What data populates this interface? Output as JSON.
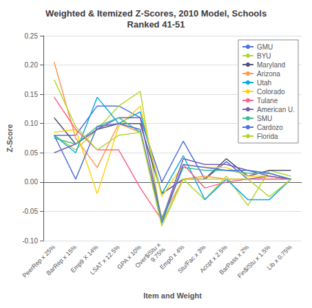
{
  "chart_data": {
    "type": "line",
    "title": "Weighted & Itemized Z-Scores, 2010 Model, Schools\nRanked 41-51",
    "xlabel": "Item and Weight",
    "ylabel": "Z-Score",
    "categories": [
      "PeerRep x 25%",
      "BarRep x 15%",
      "Emp9 X 14%",
      "LSAT x 12.5%",
      "GPA x 10%",
      "Over$/Stu x\n9.75%",
      "Emp0 x 4%",
      "Stu/Fac x 3%",
      "Accpt x 2.5%",
      "BarPass x 2%",
      "Fin$/Stu x 1.5%",
      "Lib x 0.75%"
    ],
    "series": [
      {
        "name": "GMU",
        "values": [
          0.08,
          0.08,
          0.13,
          0.13,
          0.11,
          0.0,
          0.07,
          0.005,
          0.035,
          0.005,
          0.01,
          0.005
        ]
      },
      {
        "name": "BYU",
        "values": [
          0.08,
          0.055,
          0.09,
          0.13,
          0.155,
          -0.07,
          0.005,
          -0.03,
          0.01,
          -0.04,
          0.02,
          0.01
        ]
      },
      {
        "name": "Maryland",
        "values": [
          0.11,
          0.065,
          0.09,
          0.1,
          0.1,
          -0.02,
          0.005,
          0.005,
          0.04,
          0.01,
          0.02,
          0.02
        ]
      },
      {
        "name": "Arizona",
        "values": [
          0.205,
          0.075,
          0.025,
          0.1,
          0.085,
          -0.06,
          0.005,
          0.01,
          0.005,
          0.005,
          0.005,
          0.005
        ]
      },
      {
        "name": "Utah",
        "values": [
          0.08,
          0.05,
          0.145,
          0.1,
          0.12,
          -0.02,
          0.045,
          -0.03,
          0.005,
          -0.03,
          -0.03,
          0.005
        ]
      },
      {
        "name": "Colorado",
        "values": [
          0.085,
          0.09,
          -0.02,
          0.095,
          0.13,
          -0.025,
          0.03,
          0.025,
          0.025,
          0.01,
          0.01,
          0.005
        ]
      },
      {
        "name": "Tulane",
        "values": [
          0.145,
          0.09,
          0.055,
          0.055,
          -0.01,
          -0.065,
          0.03,
          -0.01,
          0.0,
          0.005,
          0.005,
          0.005
        ]
      },
      {
        "name": "American U.",
        "values": [
          0.05,
          0.065,
          0.09,
          0.11,
          0.11,
          -0.065,
          0.04,
          0.03,
          0.03,
          0.02,
          0.01,
          0.005
        ]
      },
      {
        "name": "SMU",
        "values": [
          0.075,
          0.065,
          0.095,
          0.11,
          0.085,
          -0.065,
          0.025,
          0.02,
          0.02,
          0.015,
          0.015,
          0.005
        ]
      },
      {
        "name": "Cardozo",
        "values": [
          0.08,
          0.005,
          0.095,
          0.1,
          0.09,
          -0.07,
          0.03,
          0.025,
          0.02,
          0.02,
          0.015,
          0.005
        ]
      },
      {
        "name": "Florida",
        "values": [
          0.175,
          0.095,
          0.055,
          0.08,
          0.085,
          -0.075,
          0.005,
          0.005,
          0.005,
          0.005,
          -0.025,
          0.005
        ]
      }
    ],
    "ylim": [
      -0.1,
      0.25
    ],
    "yticks": [
      {
        "value": -0.1,
        "label": "-0.10"
      },
      -0.05,
      {
        "value": 0.0,
        "label": "0.00"
      },
      0.05,
      {
        "value": 0.1,
        "label": "0.10"
      },
      0.15,
      {
        "value": 0.2,
        "label": "0.20"
      },
      0.25
    ],
    "grid": true,
    "legend": "upper right"
  }
}
